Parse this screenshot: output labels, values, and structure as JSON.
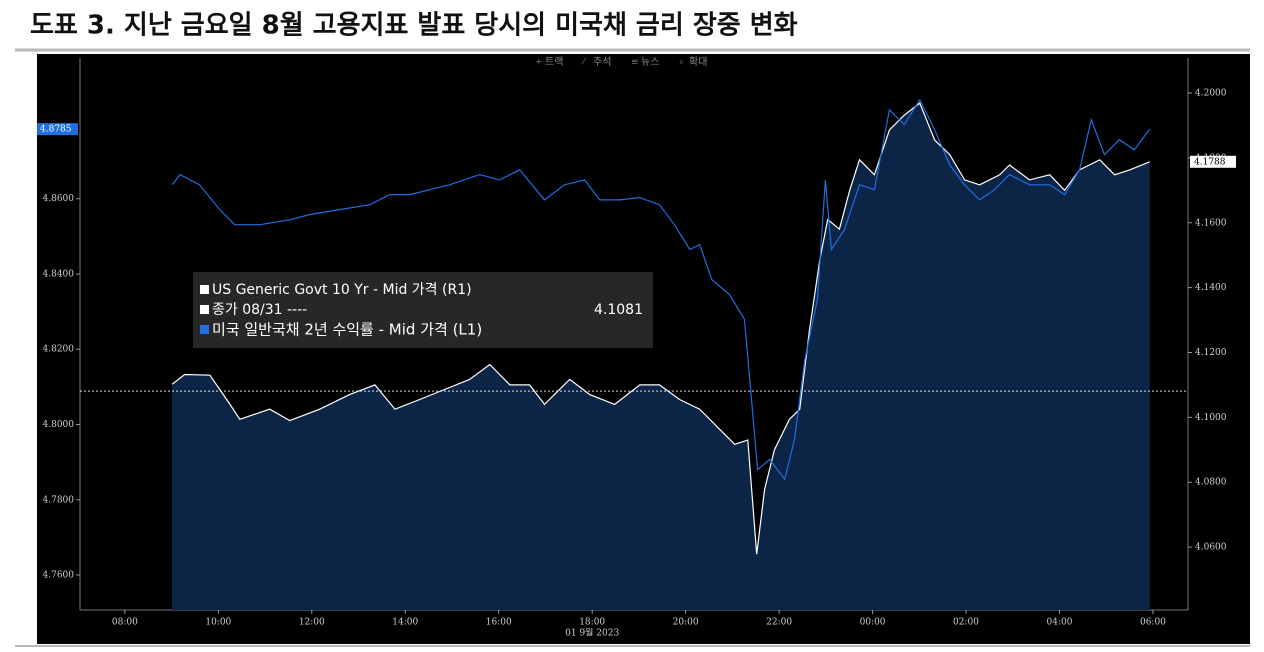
{
  "chart_data": {
    "type": "line",
    "title": "도표 3. 지난 금요일 8월 고용지표 발표 당시의 미국채 금리 장중 변화",
    "toolbar": [
      "트랙",
      "주석",
      "뉴스",
      "확대"
    ],
    "x_axis_note": "01 9월 2023",
    "xlim": [
      7.04,
      30.75
    ],
    "xticks": [
      {
        "value": 8,
        "label": "08:00"
      },
      {
        "value": 10,
        "label": "10:00"
      },
      {
        "value": 12,
        "label": "12:00"
      },
      {
        "value": 14,
        "label": "14:00"
      },
      {
        "value": 16,
        "label": "16:00"
      },
      {
        "value": 18,
        "label": "18:00"
      },
      {
        "value": 20,
        "label": "20:00"
      },
      {
        "value": 22,
        "label": "22:00"
      },
      {
        "value": 24,
        "label": "00:00"
      },
      {
        "value": 26,
        "label": "02:00"
      },
      {
        "value": 28,
        "label": "04:00"
      },
      {
        "value": 30,
        "label": "06:00"
      }
    ],
    "ylim": [
      4.7507,
      4.8974
    ],
    "yticks": [
      {
        "value": 4.76,
        "label": "4.7600"
      },
      {
        "value": 4.78,
        "label": "4.7800"
      },
      {
        "value": 4.8,
        "label": "4.8000"
      },
      {
        "value": 4.82,
        "label": "4.8200"
      },
      {
        "value": 4.84,
        "label": "4.8400"
      },
      {
        "value": 4.86,
        "label": "4.8600"
      }
    ],
    "y2lim": [
      4.0406,
      4.2108
    ],
    "y2ticks": [
      {
        "value": 4.06,
        "label": "4.0600"
      },
      {
        "value": 4.08,
        "label": "4.0800"
      },
      {
        "value": 4.1,
        "label": "4.1000"
      },
      {
        "value": 4.12,
        "label": "4.1200"
      },
      {
        "value": 4.14,
        "label": "4.1400"
      },
      {
        "value": 4.16,
        "label": "4.1600"
      },
      {
        "value": 4.18,
        "label": "4.1800"
      },
      {
        "value": 4.2,
        "label": "4.2000"
      }
    ],
    "grid": false,
    "series": [
      {
        "name": "US Generic Govt 10 Yr - Mid 가격 (R1)",
        "color": "#ffffff",
        "fill": "#0c2546",
        "axis": "y2",
        "x": [
          9.01,
          9.28,
          9.82,
          10.25,
          10.46,
          11.1,
          11.53,
          12.17,
          12.81,
          13.35,
          13.78,
          14.31,
          14.84,
          15.38,
          15.81,
          16.24,
          16.66,
          16.98,
          17.52,
          17.95,
          18.48,
          19.02,
          19.44,
          19.87,
          20.3,
          20.73,
          21.05,
          21.33,
          21.52,
          21.69,
          21.9,
          22.22,
          22.44,
          22.65,
          22.87,
          23.04,
          23.29,
          23.51,
          23.72,
          24.04,
          24.36,
          24.68,
          25.01,
          25.33,
          25.65,
          25.97,
          26.29,
          26.72,
          26.93,
          27.36,
          27.79,
          28.11,
          28.43,
          28.86,
          29.18,
          29.5,
          29.93
        ],
        "values": [
          4.1102,
          4.1132,
          4.113,
          4.104,
          4.0994,
          4.1025,
          4.099,
          4.1025,
          4.107,
          4.11,
          4.1025,
          4.1055,
          4.1086,
          4.1117,
          4.1163,
          4.11,
          4.11,
          4.104,
          4.1117,
          4.107,
          4.104,
          4.11,
          4.11,
          4.1055,
          4.1025,
          4.0963,
          4.0917,
          4.093,
          4.0578,
          4.0778,
          4.09,
          4.0994,
          4.1025,
          4.127,
          4.1486,
          4.161,
          4.158,
          4.17,
          4.1794,
          4.1748,
          4.1886,
          4.1932,
          4.1969,
          4.1855,
          4.181,
          4.1732,
          4.1717,
          4.1748,
          4.1778,
          4.1732,
          4.1748,
          4.17,
          4.1763,
          4.1794,
          4.1748,
          4.1763,
          4.1788
        ]
      },
      {
        "name": "미국 일반국채 2년 수익률 - Mid 가격 (L1)",
        "color": "#1f6fe0",
        "axis": "y",
        "x": [
          9.01,
          9.18,
          9.6,
          10.03,
          10.35,
          10.89,
          11.53,
          11.96,
          12.6,
          13.24,
          13.67,
          14.1,
          14.52,
          14.95,
          15.59,
          16.02,
          16.45,
          16.98,
          17.41,
          17.84,
          18.16,
          18.59,
          19.02,
          19.44,
          19.76,
          20.09,
          20.3,
          20.56,
          20.94,
          21.26,
          21.41,
          21.54,
          21.8,
          22.12,
          22.33,
          22.55,
          22.82,
          22.99,
          23.12,
          23.4,
          23.72,
          24.04,
          24.36,
          24.68,
          25.01,
          25.33,
          25.65,
          25.97,
          26.29,
          26.61,
          26.93,
          27.36,
          27.79,
          28.11,
          28.43,
          28.68,
          28.96,
          29.28,
          29.6,
          29.93
        ],
        "values": [
          4.8637,
          4.8664,
          4.8637,
          4.8571,
          4.8531,
          4.8531,
          4.8544,
          4.8558,
          4.8571,
          4.8584,
          4.8611,
          4.8611,
          4.8624,
          4.8637,
          4.8664,
          4.865,
          4.8677,
          4.8597,
          4.8637,
          4.865,
          4.8597,
          4.8597,
          4.8603,
          4.8584,
          4.8531,
          4.8465,
          4.8478,
          4.8385,
          4.8345,
          4.8279,
          4.8066,
          4.788,
          4.7907,
          4.7854,
          4.796,
          4.8172,
          4.8332,
          4.865,
          4.8465,
          4.8518,
          4.8637,
          4.8624,
          4.8836,
          4.8797,
          4.8863,
          4.8783,
          4.869,
          4.8637,
          4.8597,
          4.8624,
          4.8664,
          4.8637,
          4.8637,
          4.8611,
          4.8677,
          4.881,
          4.8717,
          4.8757,
          4.873,
          4.8785
        ]
      }
    ],
    "prev_close": {
      "name": "종가 08/31 ----",
      "value": 4.1081,
      "axis": "y2"
    }
  }
}
